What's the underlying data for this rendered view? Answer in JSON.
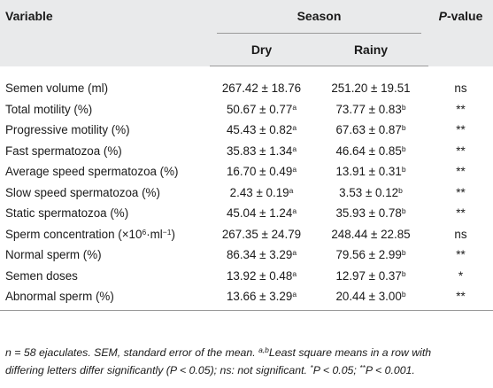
{
  "header": {
    "variable": "Variable",
    "season": "Season",
    "pvalue_p": "P",
    "pvalue_rest": "-value",
    "dry": "Dry",
    "rainy": "Rainy"
  },
  "rows": [
    {
      "label": "Semen volume (ml)",
      "dry": "267.42 ± 18.76",
      "dry_sup": "",
      "rainy": "251.20 ± 19.51",
      "rainy_sup": "",
      "p": "ns"
    },
    {
      "label": "Total motility (%)",
      "dry": "50.67 ± 0.77",
      "dry_sup": "a",
      "rainy": "73.77 ± 0.83",
      "rainy_sup": "b",
      "p": "**"
    },
    {
      "label": "Progressive motility (%)",
      "dry": "45.43 ± 0.82",
      "dry_sup": "a",
      "rainy": "67.63 ± 0.87",
      "rainy_sup": "b",
      "p": "**"
    },
    {
      "label": "Fast spermatozoa (%)",
      "dry": "35.83 ± 1.34",
      "dry_sup": "a",
      "rainy": "46.64 ± 0.85",
      "rainy_sup": "b",
      "p": "**"
    },
    {
      "label": "Average speed spermatozoa (%)",
      "dry": "16.70 ± 0.49",
      "dry_sup": "a",
      "rainy": "13.91 ± 0.31",
      "rainy_sup": "b",
      "p": "**"
    },
    {
      "label": "Slow speed spermatozoa (%)",
      "dry": "2.43 ± 0.19",
      "dry_sup": "a",
      "rainy": "3.53 ± 0.12",
      "rainy_sup": "b",
      "p": "**"
    },
    {
      "label": "Static spermatozoa (%)",
      "dry": "45.04 ± 1.24",
      "dry_sup": "a",
      "rainy": "35.93 ± 0.78",
      "rainy_sup": "b",
      "p": "**"
    },
    {
      "label_pre": "Sperm concentration (×10",
      "label_sup": "6",
      "label_mid": "·ml",
      "label_sup2": "−1",
      "label_post": ")",
      "dry": "267.35 ± 24.79",
      "dry_sup": "",
      "rainy": "248.44 ± 22.85",
      "rainy_sup": "",
      "p": "ns"
    },
    {
      "label": "Normal sperm (%)",
      "dry": "86.34 ± 3.29",
      "dry_sup": "a",
      "rainy": "79.56 ± 2.99",
      "rainy_sup": "b",
      "p": "**"
    },
    {
      "label": "Semen doses",
      "dry": "13.92 ± 0.48",
      "dry_sup": "a",
      "rainy": "12.97 ± 0.37",
      "rainy_sup": "b",
      "p": "*"
    },
    {
      "label": "Abnormal sperm (%)",
      "dry": "13.66 ± 3.29",
      "dry_sup": "a",
      "rainy": "20.44 ± 3.00",
      "rainy_sup": "b",
      "p": "**"
    }
  ],
  "footnote": {
    "line1_a": "n = 58 ejaculates. SEM, standard error of the mean. ",
    "line1_sup": "a,b",
    "line1_b": "Least square means in a row with",
    "line2_a": "differing letters differ significantly (P < 0.05); ns: not significant. ",
    "line2_sup1": "*",
    "line2_b": "P < 0.05; ",
    "line2_sup2": "**",
    "line2_c": "P < 0.001."
  }
}
